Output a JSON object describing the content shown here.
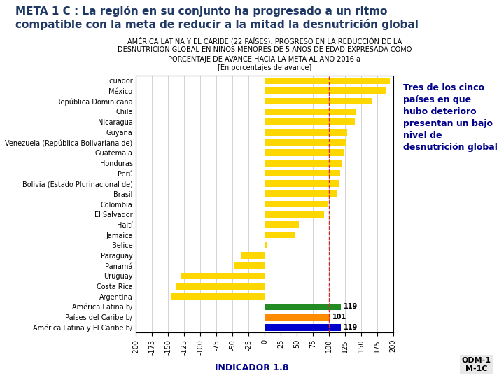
{
  "chart_data": {
    "type": "bar",
    "orientation": "horizontal",
    "title": "META 1 C : La región en su conjunto ha progresado a un ritmo\ncompatible con la meta de reducir a la mitad la desnutrición global",
    "subtitle": "AMÉRICA LATINA Y EL CARIBE (22 PAÍSES): PROGRESO EN LA REDUCCIÓN DE LA\nDESNUTRICIÓN GLOBAL EN NIÑOS MENORES DE 5 AÑOS DE EDAD EXPRESADA COMO\nPORCENTAJE DE AVANCE HACIA LA META AL AÑO 2016 a\n[En porcentajes de avance]",
    "categories": [
      "Ecuador",
      "México",
      "República Dominicana",
      "Chile",
      "Nicaragua",
      "Guyana",
      "Venezuela (República Bolivariana de)",
      "Guatemala",
      "Honduras",
      "Perú",
      "Bolivia (Estado Plurinacional de)",
      "Brasil",
      "Colombia",
      "El Salvador",
      "Haití",
      "Jamaica",
      "Belice",
      "Paraguay",
      "Panamá",
      "Uruguay",
      "Costa Rica",
      "Argentina",
      "América Latina b/",
      "Países del Caribe b/",
      "América Latina y El Caribe b/"
    ],
    "values": [
      195,
      190,
      168,
      143,
      140,
      128,
      126,
      123,
      120,
      118,
      116,
      113,
      98,
      93,
      53,
      48,
      4,
      -37,
      -47,
      -130,
      -138,
      -145,
      119,
      101,
      119
    ],
    "value_labels": [
      null,
      null,
      null,
      null,
      null,
      null,
      null,
      null,
      null,
      null,
      null,
      null,
      null,
      null,
      null,
      null,
      null,
      null,
      null,
      null,
      null,
      null,
      "119",
      "101",
      "119"
    ],
    "colors": [
      "#FFD700",
      "#FFD700",
      "#FFD700",
      "#FFD700",
      "#FFD700",
      "#FFD700",
      "#FFD700",
      "#FFD700",
      "#FFD700",
      "#FFD700",
      "#FFD700",
      "#FFD700",
      "#FFD700",
      "#FFD700",
      "#FFD700",
      "#FFD700",
      "#FFD700",
      "#FFD700",
      "#FFD700",
      "#FFD700",
      "#FFD700",
      "#FFD700",
      "#228B22",
      "#FF8C00",
      "#0000CD"
    ],
    "xlim": [
      -200,
      200
    ],
    "xticks": [
      -200,
      -175,
      -150,
      -125,
      -100,
      -75,
      -50,
      -25,
      0,
      25,
      50,
      75,
      100,
      125,
      150,
      175,
      200
    ],
    "reference_line": 100,
    "grid": true,
    "annotations": [
      "Tres de los cinco\npaíses en que\nhubo deterioro\npresentan un bajo\nnivel de\ndesnutrición global",
      "INDICADOR 1.8",
      "ODM-1\nM-1C"
    ]
  }
}
